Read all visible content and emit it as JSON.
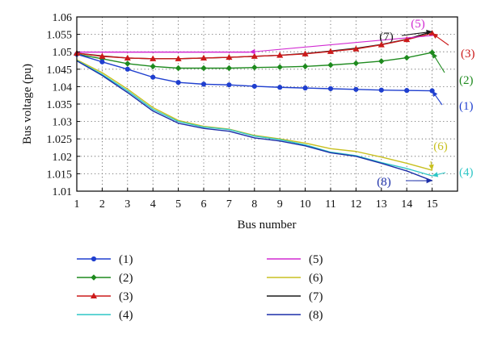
{
  "chart_data": {
    "type": "line",
    "title": "",
    "xlabel": "Bus number",
    "ylabel": "Bus voltage (pu)",
    "xlim": [
      1,
      16
    ],
    "ylim": [
      1.01,
      1.06
    ],
    "grid": true,
    "legend_placement": "bottom",
    "xticks": [
      "1",
      "2",
      "3",
      "4",
      "5",
      "6",
      "7",
      "8",
      "9",
      "10",
      "11",
      "12",
      "13",
      "14",
      "15"
    ],
    "yticks": [
      "1.01",
      "1.015",
      "1.02",
      "1.025",
      "1.03",
      "1.035",
      "1.04",
      "1.045",
      "1.05",
      "1.055",
      "1.06"
    ],
    "x": [
      1,
      2,
      3,
      4,
      5,
      6,
      7,
      8,
      9,
      10,
      11,
      12,
      13,
      14,
      15
    ],
    "series": [
      {
        "name": "(1)",
        "color": "#1f3fcf",
        "marker": "circle",
        "x": [
          1,
          2,
          3,
          4,
          5,
          6,
          7,
          8,
          9,
          10,
          11,
          12,
          13,
          14,
          15
        ],
        "values": [
          1.0493,
          1.0471,
          1.045,
          1.0427,
          1.0412,
          1.0407,
          1.0405,
          1.0401,
          1.0398,
          1.0396,
          1.0394,
          1.0392,
          1.039,
          1.0389,
          1.0388
        ]
      },
      {
        "name": "(2)",
        "color": "#1e8a1e",
        "marker": "diamond",
        "x": [
          1,
          2,
          3,
          4,
          5,
          6,
          7,
          8,
          9,
          10,
          11,
          12,
          13,
          14,
          15
        ],
        "values": [
          1.0493,
          1.048,
          1.0466,
          1.0458,
          1.0453,
          1.0453,
          1.0453,
          1.0455,
          1.0456,
          1.0458,
          1.0462,
          1.0467,
          1.0473,
          1.0483,
          1.0498
        ]
      },
      {
        "name": "(3)",
        "color": "#cc1a1a",
        "marker": "triangle",
        "x": [
          1,
          2,
          3,
          4,
          5,
          6,
          7,
          8,
          9,
          10,
          11,
          12,
          13,
          14,
          15
        ],
        "values": [
          1.0496,
          1.0487,
          1.0482,
          1.048,
          1.048,
          1.0482,
          1.0484,
          1.0487,
          1.049,
          1.0494,
          1.0501,
          1.0508,
          1.052,
          1.0535,
          1.0553
        ]
      },
      {
        "name": "(4)",
        "color": "#2fc6c6",
        "marker": "none",
        "x": [
          1,
          2,
          3,
          4,
          5,
          6,
          7,
          8,
          9,
          10,
          11,
          12,
          13,
          14,
          15
        ],
        "values": [
          1.0475,
          1.0435,
          1.0388,
          1.0335,
          1.03,
          1.0284,
          1.0277,
          1.0258,
          1.0248,
          1.0233,
          1.0212,
          1.0202,
          1.0182,
          1.0165,
          1.0144
        ]
      },
      {
        "name": "(5)",
        "color": "#d22ad2",
        "marker": "none",
        "x": [
          1,
          2,
          3,
          4,
          5,
          6,
          7,
          7.8
        ],
        "values": [
          1.0499,
          1.0499,
          1.0499,
          1.0499,
          1.0499,
          1.0499,
          1.0499,
          1.0499
        ]
      },
      {
        "name": "(6)",
        "color": "#c8c020",
        "marker": "none",
        "x": [
          1,
          2,
          3,
          4,
          5,
          6,
          7,
          8,
          9,
          10,
          11,
          12,
          13,
          14,
          15
        ],
        "values": [
          1.0477,
          1.044,
          1.0393,
          1.034,
          1.0303,
          1.0286,
          1.0278,
          1.026,
          1.025,
          1.0238,
          1.0222,
          1.0214,
          1.0198,
          1.018,
          1.016
        ]
      },
      {
        "name": "(7)",
        "color": "#1a1a1a",
        "marker": "none",
        "x": [
          1,
          2,
          3,
          4,
          5,
          6,
          7,
          8,
          9,
          10,
          11,
          12,
          13,
          14,
          15
        ],
        "values": [
          1.0496,
          1.0488,
          1.0482,
          1.048,
          1.048,
          1.0482,
          1.0484,
          1.0487,
          1.049,
          1.0495,
          1.0502,
          1.051,
          1.0521,
          1.0536,
          1.0558
        ]
      },
      {
        "name": "(8)",
        "color": "#1c2fa8",
        "marker": "none",
        "x": [
          1,
          2,
          3,
          4,
          5,
          6,
          7,
          8,
          9,
          10,
          11,
          12,
          13,
          14,
          15
        ],
        "values": [
          1.0474,
          1.0432,
          1.0383,
          1.033,
          1.0295,
          1.028,
          1.0272,
          1.0253,
          1.0244,
          1.023,
          1.021,
          1.02,
          1.018,
          1.0158,
          1.013
        ]
      }
    ],
    "annotations": [
      "(1)",
      "(2)",
      "(3)",
      "(4)",
      "(5)",
      "(6)",
      "(7)",
      "(8)"
    ]
  }
}
